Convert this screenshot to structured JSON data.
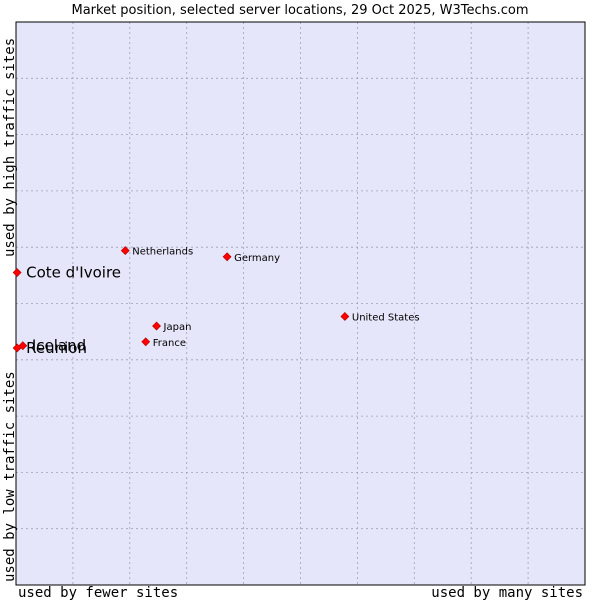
{
  "chart_data": {
    "type": "scatter",
    "title": "Market position, selected server locations, 29 Oct 2025, W3Techs.com",
    "xlabel_left": "used by fewer sites",
    "xlabel_right": "used by many sites",
    "ylabel_bottom": "used by low traffic sites",
    "ylabel_top": "used by high traffic sites",
    "xlim": [
      0,
      100
    ],
    "ylim": [
      0,
      100
    ],
    "grid": true,
    "colors": {
      "plot_bg": "#e6e6fa",
      "point": "#ff0000",
      "grid": "#a0a0b4",
      "frame": "#000000"
    },
    "points": [
      {
        "label": "Netherlands",
        "x": 19.2,
        "y": 59.4,
        "size": "small"
      },
      {
        "label": "Germany",
        "x": 37.1,
        "y": 58.3,
        "size": "small"
      },
      {
        "label": "Cote d'Ivoire",
        "x": 0.2,
        "y": 55.5,
        "size": "large"
      },
      {
        "label": "United States",
        "x": 57.8,
        "y": 47.7,
        "size": "small"
      },
      {
        "label": "Japan",
        "x": 24.7,
        "y": 46.0,
        "size": "small"
      },
      {
        "label": "France",
        "x": 22.8,
        "y": 43.2,
        "size": "small"
      },
      {
        "label": "Iceland",
        "x": 1.2,
        "y": 42.5,
        "size": "large"
      },
      {
        "label": "Reunion",
        "x": 0.2,
        "y": 42.1,
        "size": "large"
      }
    ]
  }
}
